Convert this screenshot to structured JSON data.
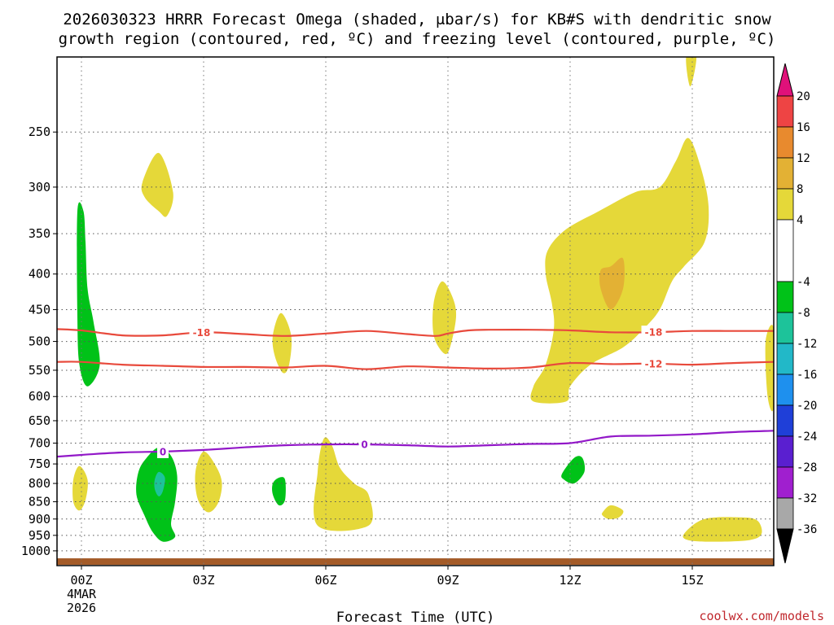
{
  "chart_data": {
    "type": "heatmap",
    "title_line1": "2026030323 HRRR Forecast Omega (shaded, μbar/s) for KB#S with dendritic snow",
    "title_line2": "growth region (contoured, red, ºC) and freezing level (contoured, purple, ºC)",
    "xlabel": "Forecast Time (UTC)",
    "credit": "coolwx.com/models",
    "x_range_hours": [
      -0.6,
      17.0
    ],
    "x_ticks": [
      {
        "hour": 0,
        "label": "00Z",
        "sub1": "4MAR",
        "sub2": "2026"
      },
      {
        "hour": 3,
        "label": "03Z"
      },
      {
        "hour": 6,
        "label": "06Z"
      },
      {
        "hour": 9,
        "label": "09Z"
      },
      {
        "hour": 12,
        "label": "12Z"
      },
      {
        "hour": 15,
        "label": "15Z"
      }
    ],
    "y_axis": "pressure (mb), log scale, inverted",
    "y_range_mb": [
      1050,
      195
    ],
    "y_ticks": [
      250,
      300,
      350,
      400,
      450,
      500,
      550,
      600,
      650,
      700,
      750,
      800,
      850,
      900,
      950,
      1000
    ],
    "colorbar": {
      "labels": [
        "20",
        "16",
        "12",
        "8",
        "4",
        "-4",
        "-8",
        "-12",
        "-16",
        "-20",
        "-24",
        "-28",
        "-32",
        "-36"
      ],
      "segments": [
        {
          "from": 16,
          "to": 20,
          "color": "#ee4444"
        },
        {
          "from": 12,
          "to": 16,
          "color": "#e88a2e"
        },
        {
          "from": 8,
          "to": 12,
          "color": "#e3b134"
        },
        {
          "from": 4,
          "to": 8,
          "color": "#e5d839"
        },
        {
          "from": -4,
          "to": 4,
          "color": "#ffffff"
        },
        {
          "from": -8,
          "to": -4,
          "color": "#00c218"
        },
        {
          "from": -12,
          "to": -8,
          "color": "#1dc39a"
        },
        {
          "from": -16,
          "to": -12,
          "color": "#22b8c8"
        },
        {
          "from": -20,
          "to": -16,
          "color": "#1e90ee"
        },
        {
          "from": -24,
          "to": -20,
          "color": "#1f3fd8"
        },
        {
          "from": -28,
          "to": -24,
          "color": "#5a1fd0"
        },
        {
          "from": -32,
          "to": -28,
          "color": "#a01fcf"
        },
        {
          "from": -36,
          "to": -32,
          "color": "#a8a8a8"
        }
      ],
      "top_arrow_color": "#e0117a",
      "bottom_arrow_color": "#000000"
    },
    "omega_regions": [
      {
        "id": "g1",
        "color": "#00c218",
        "pts": [
          [
            -0.1,
            325
          ],
          [
            0.05,
            325
          ],
          [
            0.1,
            360
          ],
          [
            0.15,
            420
          ],
          [
            0.3,
            470
          ],
          [
            0.45,
            540
          ],
          [
            0.15,
            580
          ],
          [
            -0.05,
            540
          ],
          [
            -0.1,
            460
          ]
        ]
      },
      {
        "id": "y1",
        "color": "#e5d839",
        "pts": [
          [
            1.5,
            295
          ],
          [
            1.9,
            268
          ],
          [
            2.25,
            305
          ],
          [
            2.1,
            330
          ],
          [
            1.9,
            325
          ],
          [
            1.55,
            310
          ]
        ]
      },
      {
        "id": "y2",
        "color": "#e5d839",
        "pts": [
          [
            4.7,
            490
          ],
          [
            4.9,
            455
          ],
          [
            5.15,
            490
          ],
          [
            5.1,
            540
          ],
          [
            4.95,
            555
          ],
          [
            4.75,
            525
          ]
        ]
      },
      {
        "id": "y3",
        "color": "#e5d839",
        "pts": [
          [
            8.65,
            440
          ],
          [
            8.85,
            410
          ],
          [
            9.1,
            430
          ],
          [
            9.2,
            460
          ],
          [
            9.05,
            510
          ],
          [
            8.9,
            520
          ],
          [
            8.65,
            490
          ]
        ]
      },
      {
        "id": "y4",
        "color": "#e5d839",
        "pts": [
          [
            11.1,
            580
          ],
          [
            11.4,
            540
          ],
          [
            11.6,
            480
          ],
          [
            11.55,
            440
          ],
          [
            11.4,
            400
          ],
          [
            11.45,
            370
          ],
          [
            11.9,
            345
          ],
          [
            12.7,
            325
          ],
          [
            13.6,
            305
          ],
          [
            14.2,
            300
          ],
          [
            14.6,
            275
          ],
          [
            14.9,
            255
          ],
          [
            15.2,
            280
          ],
          [
            15.4,
            320
          ],
          [
            15.3,
            360
          ],
          [
            14.8,
            390
          ],
          [
            14.5,
            410
          ],
          [
            14.2,
            450
          ],
          [
            13.8,
            480
          ],
          [
            13.3,
            510
          ],
          [
            12.5,
            540
          ],
          [
            12.0,
            580
          ],
          [
            11.9,
            610
          ],
          [
            11.1,
            610
          ]
        ]
      },
      {
        "id": "o1",
        "color": "#e3b134",
        "pts": [
          [
            13.0,
            390
          ],
          [
            13.3,
            380
          ],
          [
            13.3,
            420
          ],
          [
            13.0,
            450
          ],
          [
            12.75,
            420
          ],
          [
            12.75,
            395
          ]
        ]
      },
      {
        "id": "y5",
        "color": "#e5d839",
        "pts": [
          [
            14.85,
            195
          ],
          [
            15.1,
            195
          ],
          [
            14.95,
            215
          ]
        ]
      },
      {
        "id": "y6",
        "color": "#e5d839",
        "pts": [
          [
            16.8,
            500
          ],
          [
            17.0,
            480
          ],
          [
            17.0,
            620
          ],
          [
            16.85,
            600
          ]
        ]
      },
      {
        "id": "y7",
        "color": "#e5d839",
        "pts": [
          [
            -0.2,
            790
          ],
          [
            -0.05,
            755
          ],
          [
            0.15,
            790
          ],
          [
            0.1,
            845
          ],
          [
            -0.05,
            875
          ],
          [
            -0.2,
            850
          ]
        ]
      },
      {
        "id": "g2",
        "color": "#00c218",
        "pts": [
          [
            1.4,
            770
          ],
          [
            1.6,
            735
          ],
          [
            1.9,
            710
          ],
          [
            2.2,
            730
          ],
          [
            2.35,
            780
          ],
          [
            2.3,
            850
          ],
          [
            2.2,
            915
          ],
          [
            2.3,
            955
          ],
          [
            2.0,
            970
          ],
          [
            1.75,
            940
          ],
          [
            1.55,
            890
          ],
          [
            1.35,
            830
          ]
        ]
      },
      {
        "id": "t1",
        "color": "#1dc39a",
        "pts": [
          [
            1.8,
            790
          ],
          [
            1.9,
            770
          ],
          [
            2.05,
            785
          ],
          [
            2.0,
            820
          ],
          [
            1.9,
            835
          ],
          [
            1.8,
            815
          ]
        ]
      },
      {
        "id": "y8",
        "color": "#e5d839",
        "pts": [
          [
            2.8,
            770
          ],
          [
            3.0,
            720
          ],
          [
            3.3,
            755
          ],
          [
            3.45,
            800
          ],
          [
            3.35,
            855
          ],
          [
            3.1,
            880
          ],
          [
            2.85,
            840
          ]
        ]
      },
      {
        "id": "g3",
        "color": "#00c218",
        "pts": [
          [
            4.7,
            800
          ],
          [
            4.85,
            785
          ],
          [
            5.0,
            790
          ],
          [
            5.0,
            845
          ],
          [
            4.85,
            860
          ],
          [
            4.7,
            830
          ]
        ]
      },
      {
        "id": "y9",
        "color": "#e5d839",
        "pts": [
          [
            5.8,
            770
          ],
          [
            5.95,
            690
          ],
          [
            6.15,
            705
          ],
          [
            6.35,
            760
          ],
          [
            6.7,
            800
          ],
          [
            7.05,
            830
          ],
          [
            7.05,
            920
          ],
          [
            5.8,
            920
          ]
        ]
      },
      {
        "id": "g4",
        "color": "#00c218",
        "pts": [
          [
            11.8,
            775
          ],
          [
            12.1,
            735
          ],
          [
            12.3,
            735
          ],
          [
            12.35,
            770
          ],
          [
            12.1,
            800
          ],
          [
            11.85,
            790
          ]
        ]
      },
      {
        "id": "y10",
        "color": "#e5d839",
        "pts": [
          [
            12.8,
            880
          ],
          [
            13.0,
            860
          ],
          [
            13.3,
            875
          ],
          [
            13.2,
            895
          ],
          [
            12.95,
            900
          ],
          [
            12.8,
            890
          ]
        ]
      },
      {
        "id": "y11",
        "color": "#e5d839",
        "pts": [
          [
            14.8,
            945
          ],
          [
            15.3,
            900
          ],
          [
            16.2,
            895
          ],
          [
            16.6,
            905
          ],
          [
            16.7,
            945
          ],
          [
            16.4,
            965
          ],
          [
            15.5,
            970
          ],
          [
            14.9,
            965
          ]
        ]
      }
    ],
    "contours": [
      {
        "name": "-18",
        "color": "#e84a3c",
        "label": "-18",
        "label_hours": [
          2.95,
          14.05
        ],
        "pts": [
          [
            -0.6,
            480
          ],
          [
            0,
            482
          ],
          [
            1,
            490
          ],
          [
            2,
            490
          ],
          [
            3,
            485
          ],
          [
            4,
            488
          ],
          [
            5,
            491
          ],
          [
            6,
            487
          ],
          [
            7,
            483
          ],
          [
            8,
            488
          ],
          [
            8.7,
            491
          ],
          [
            9,
            487
          ],
          [
            9.5,
            482
          ],
          [
            10,
            481
          ],
          [
            11,
            481
          ],
          [
            12,
            482
          ],
          [
            13,
            485
          ],
          [
            14,
            485
          ],
          [
            15,
            483
          ],
          [
            16,
            483
          ],
          [
            17,
            483
          ]
        ]
      },
      {
        "name": "-12",
        "color": "#e84a3c",
        "label": "-12",
        "label_hours": [
          14.05
        ],
        "pts": [
          [
            -0.6,
            535
          ],
          [
            0,
            535
          ],
          [
            1,
            540
          ],
          [
            2,
            542
          ],
          [
            3,
            544
          ],
          [
            4,
            544
          ],
          [
            5,
            545
          ],
          [
            6,
            542
          ],
          [
            7,
            548
          ],
          [
            8,
            543
          ],
          [
            9,
            545
          ],
          [
            10,
            547
          ],
          [
            11,
            545
          ],
          [
            12,
            537
          ],
          [
            13,
            539
          ],
          [
            14,
            538
          ],
          [
            15,
            540
          ],
          [
            16,
            537
          ],
          [
            17,
            535
          ]
        ]
      },
      {
        "name": "0",
        "color": "#9218c8",
        "label": "0",
        "label_hours": [
          2.0,
          6.95
        ],
        "pts": [
          [
            -0.6,
            732
          ],
          [
            0,
            728
          ],
          [
            1,
            722
          ],
          [
            2,
            720
          ],
          [
            3,
            716
          ],
          [
            4,
            710
          ],
          [
            5,
            705
          ],
          [
            6,
            703
          ],
          [
            7,
            703
          ],
          [
            8,
            705
          ],
          [
            9,
            708
          ],
          [
            10,
            705
          ],
          [
            11,
            702
          ],
          [
            12,
            700
          ],
          [
            13,
            685
          ],
          [
            14,
            683
          ],
          [
            15,
            680
          ],
          [
            16,
            675
          ],
          [
            17,
            672
          ]
        ]
      }
    ],
    "ground_bar_color": "#a45b28"
  }
}
